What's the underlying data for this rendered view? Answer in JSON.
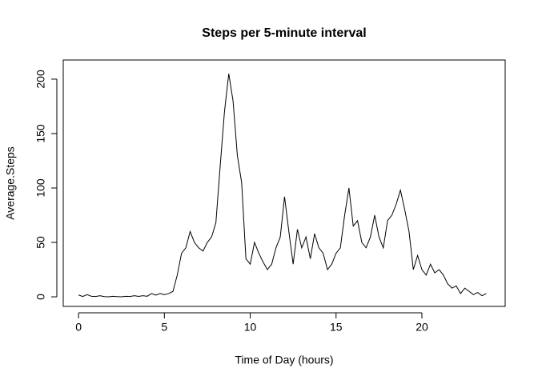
{
  "chart_data": {
    "type": "line",
    "title": "Steps per 5-minute interval",
    "x_label": "Time of Day (hours)",
    "y_label": "Average.Steps",
    "x": [
      0,
      0.25,
      0.5,
      0.75,
      1,
      1.25,
      1.5,
      1.75,
      2,
      2.25,
      2.5,
      2.75,
      3,
      3.25,
      3.5,
      3.75,
      4,
      4.25,
      4.5,
      4.75,
      5,
      5.25,
      5.5,
      5.75,
      6,
      6.25,
      6.5,
      6.75,
      7,
      7.25,
      7.5,
      7.75,
      8,
      8.25,
      8.5,
      8.75,
      9,
      9.25,
      9.5,
      9.75,
      10,
      10.25,
      10.5,
      10.75,
      11,
      11.25,
      11.5,
      11.75,
      12,
      12.25,
      12.5,
      12.75,
      13,
      13.25,
      13.5,
      13.75,
      14,
      14.25,
      14.5,
      14.75,
      15,
      15.25,
      15.5,
      15.75,
      16,
      16.25,
      16.5,
      16.75,
      17,
      17.25,
      17.5,
      17.75,
      18,
      18.25,
      18.5,
      18.75,
      19,
      19.25,
      19.5,
      19.75,
      20,
      20.25,
      20.5,
      20.75,
      21,
      21.25,
      21.5,
      21.75,
      22,
      22.25,
      22.5,
      22.75,
      23,
      23.25,
      23.5,
      23.75
    ],
    "series": [
      {
        "name": "Average.Steps",
        "color": "#000000",
        "values": [
          1.7,
          0.3,
          2,
          0.5,
          0.3,
          1,
          0.2,
          0,
          0.5,
          0.2,
          0,
          0.5,
          0.3,
          1,
          0.4,
          1,
          0.5,
          3,
          1.5,
          3,
          2,
          3,
          5,
          20,
          40,
          45,
          60,
          50,
          45,
          42,
          50,
          55,
          68,
          120,
          170,
          205,
          180,
          130,
          105,
          35,
          30,
          50,
          40,
          32,
          25,
          30,
          45,
          55,
          92,
          60,
          30,
          62,
          45,
          55,
          35,
          58,
          45,
          40,
          25,
          30,
          40,
          45,
          75,
          100,
          65,
          70,
          50,
          45,
          55,
          75,
          55,
          45,
          70,
          75,
          85,
          98,
          80,
          60,
          25,
          38,
          25,
          20,
          30,
          22,
          25,
          20,
          12,
          8,
          10,
          3,
          8,
          5,
          2,
          4,
          1,
          3
        ]
      }
    ],
    "xlim": [
      -0.89,
      24.85
    ],
    "ylim": [
      -8.8,
      217.6
    ],
    "xticks": [
      0,
      5,
      10,
      15,
      20
    ],
    "yticks": [
      0,
      50,
      100,
      150,
      200
    ]
  }
}
